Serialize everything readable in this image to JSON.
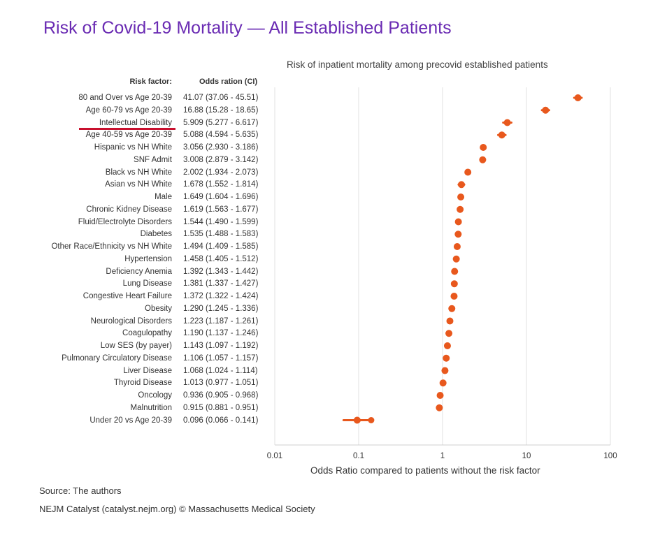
{
  "chart_data": {
    "type": "scatter",
    "title": "Risk of Covid-19 Mortality — All Established Patients",
    "subtitle": "Risk of inpatient mortality among precovid established patients",
    "col_header_factor": "Risk factor:",
    "col_header_or": "Odds ration (CI)",
    "xlabel": "Odds Ratio compared to patients without the risk factor",
    "xscale": "log",
    "xlim": [
      0.01,
      100
    ],
    "xticks": [
      "0.01",
      "0.1",
      "1",
      "10",
      "100"
    ],
    "grid": "vertical",
    "marker_color": "#e8581d",
    "rows": [
      {
        "label": "80 and Over vs Age 20-39",
        "or_text": "41.07 (37.06 - 45.51)",
        "or": 41.07,
        "lo": 37.06,
        "hi": 45.51
      },
      {
        "label": "Age 60-79 vs Age 20-39",
        "or_text": "16.88 (15.28 - 18.65)",
        "or": 16.88,
        "lo": 15.28,
        "hi": 18.65
      },
      {
        "label": "Intellectual Disability",
        "or_text": "5.909 (5.277 - 6.617)",
        "or": 5.909,
        "lo": 5.277,
        "hi": 6.617
      },
      {
        "label": "Age 40-59 vs Age 20-39",
        "or_text": "5.088 (4.594 - 5.635)",
        "or": 5.088,
        "lo": 4.594,
        "hi": 5.635
      },
      {
        "label": "Hispanic vs NH White",
        "or_text": "3.056 (2.930 - 3.186)",
        "or": 3.056,
        "lo": 2.93,
        "hi": 3.186
      },
      {
        "label": "SNF Admit",
        "or_text": "3.008 (2.879 - 3.142)",
        "or": 3.008,
        "lo": 2.879,
        "hi": 3.142
      },
      {
        "label": "Black vs NH White",
        "or_text": "2.002 (1.934 - 2.073)",
        "or": 2.002,
        "lo": 1.934,
        "hi": 2.073
      },
      {
        "label": "Asian vs NH White",
        "or_text": "1.678 (1.552 - 1.814)",
        "or": 1.678,
        "lo": 1.552,
        "hi": 1.814
      },
      {
        "label": "Male",
        "or_text": "1.649 (1.604 - 1.696)",
        "or": 1.649,
        "lo": 1.604,
        "hi": 1.696
      },
      {
        "label": "Chronic Kidney Disease",
        "or_text": "1.619 (1.563 - 1.677)",
        "or": 1.619,
        "lo": 1.563,
        "hi": 1.677
      },
      {
        "label": "Fluid/Electrolyte Disorders",
        "or_text": "1.544 (1.490 - 1.599)",
        "or": 1.544,
        "lo": 1.49,
        "hi": 1.599
      },
      {
        "label": "Diabetes",
        "or_text": "1.535 (1.488 - 1.583)",
        "or": 1.535,
        "lo": 1.488,
        "hi": 1.583
      },
      {
        "label": "Other Race/Ethnicity vs NH White",
        "or_text": "1.494 (1.409 - 1.585)",
        "or": 1.494,
        "lo": 1.409,
        "hi": 1.585
      },
      {
        "label": "Hypertension",
        "or_text": "1.458 (1.405 - 1.512)",
        "or": 1.458,
        "lo": 1.405,
        "hi": 1.512
      },
      {
        "label": "Deficiency Anemia",
        "or_text": "1.392 (1.343 - 1.442)",
        "or": 1.392,
        "lo": 1.343,
        "hi": 1.442
      },
      {
        "label": "Lung Disease",
        "or_text": "1.381 (1.337 - 1.427)",
        "or": 1.381,
        "lo": 1.337,
        "hi": 1.427
      },
      {
        "label": "Congestive Heart Failure",
        "or_text": "1.372 (1.322 - 1.424)",
        "or": 1.372,
        "lo": 1.322,
        "hi": 1.424
      },
      {
        "label": "Obesity",
        "or_text": "1.290 (1.245 - 1.336)",
        "or": 1.29,
        "lo": 1.245,
        "hi": 1.336
      },
      {
        "label": "Neurological Disorders",
        "or_text": "1.223 (1.187 - 1.261)",
        "or": 1.223,
        "lo": 1.187,
        "hi": 1.261
      },
      {
        "label": "Coagulopathy",
        "or_text": "1.190 (1.137 - 1.246)",
        "or": 1.19,
        "lo": 1.137,
        "hi": 1.246
      },
      {
        "label": "Low SES (by payer)",
        "or_text": "1.143 (1.097 - 1.192)",
        "or": 1.143,
        "lo": 1.097,
        "hi": 1.192
      },
      {
        "label": "Pulmonary Circulatory Disease",
        "or_text": "1.106 (1.057 - 1.157)",
        "or": 1.106,
        "lo": 1.057,
        "hi": 1.157
      },
      {
        "label": "Liver Disease",
        "or_text": "1.068 (1.024 - 1.114)",
        "or": 1.068,
        "lo": 1.024,
        "hi": 1.114
      },
      {
        "label": "Thyroid Disease",
        "or_text": "1.013 (0.977 - 1.051)",
        "or": 1.013,
        "lo": 0.977,
        "hi": 1.051
      },
      {
        "label": "Oncology",
        "or_text": "0.936 (0.905 - 0.968)",
        "or": 0.936,
        "lo": 0.905,
        "hi": 0.968
      },
      {
        "label": "Malnutrition",
        "or_text": "0.915 (0.881 - 0.951)",
        "or": 0.915,
        "lo": 0.881,
        "hi": 0.951
      },
      {
        "label": "Under 20 vs Age 20-39",
        "or_text": "0.096 (0.066 - 0.141)",
        "or": 0.096,
        "lo": 0.066,
        "hi": 0.141
      }
    ],
    "highlighted_row": "Intellectual Disability",
    "highlight_color": "#c8102e"
  },
  "footer": {
    "source": "Source: The authors",
    "credit": "NEJM Catalyst (catalyst.nejm.org) © Massachusetts Medical Society"
  }
}
